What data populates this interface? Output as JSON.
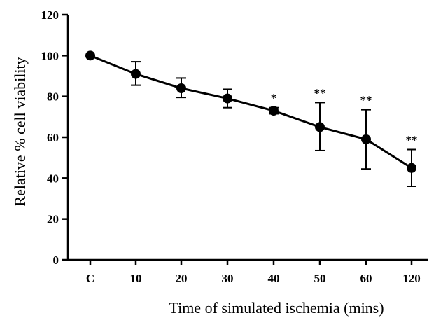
{
  "chart_data": {
    "type": "line",
    "title": "",
    "xlabel": "Time of simulated ischemia (mins)",
    "ylabel": "Relative % cell viability",
    "categories": [
      "C",
      "10",
      "20",
      "30",
      "40",
      "50",
      "60",
      "120"
    ],
    "series": [
      {
        "values": [
          100,
          91,
          84,
          79,
          73,
          65,
          59,
          45
        ],
        "error_upper": [
          0,
          6,
          5,
          4.5,
          1.5,
          12,
          14.5,
          9
        ],
        "error_lower": [
          0,
          5.5,
          4.5,
          4.5,
          1.5,
          11.5,
          14.5,
          9
        ]
      }
    ],
    "significance": [
      "",
      "",
      "",
      "",
      "*",
      "**",
      "**",
      "**"
    ],
    "ylim": [
      0,
      120
    ],
    "yticks": [
      "0",
      "20",
      "40",
      "60",
      "80",
      "100",
      "120"
    ],
    "grid": false,
    "color": "#000000"
  }
}
